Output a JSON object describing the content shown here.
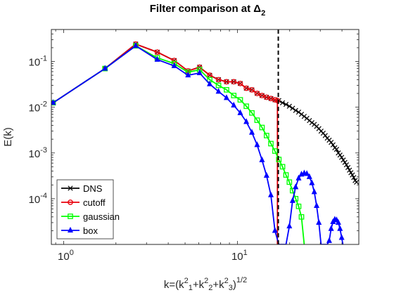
{
  "chart_data": {
    "type": "line",
    "title": "Filter comparison at Δ",
    "title_sub": "2",
    "xlabel": "k=(k",
    "xlabel_parts": [
      "k=(k",
      "1",
      "2",
      "+k",
      "2",
      "2",
      "+k",
      "3",
      "2",
      ")",
      "1/2"
    ],
    "ylabel": "E(k)",
    "xscale": "log",
    "yscale": "log",
    "xlim": [
      0.85,
      50
    ],
    "ylim": [
      1e-05,
      0.5
    ],
    "x_ticks": [
      {
        "value": 1,
        "base": "10",
        "exp": "0"
      },
      {
        "value": 10,
        "base": "10",
        "exp": "1"
      }
    ],
    "y_ticks": [
      {
        "value": 0.0001,
        "base": "10",
        "exp": "-4"
      },
      {
        "value": 0.001,
        "base": "10",
        "exp": "-3"
      },
      {
        "value": 0.01,
        "base": "10",
        "exp": "-2"
      },
      {
        "value": 0.1,
        "base": "10",
        "exp": "-1"
      }
    ],
    "cutoff_line_x": 17.2,
    "legend_location": "bottom-left",
    "series": [
      {
        "name": "DNS",
        "color": "#000000",
        "marker": "x",
        "x": [
          0.87,
          1.73,
          2.6,
          3.46,
          4.33,
          5.2,
          6.06,
          6.93,
          7.79,
          8.66,
          9.53,
          10.39,
          11.26,
          12.12,
          12.99,
          13.86,
          14.72,
          15.59,
          16.45,
          17.32,
          18.19,
          19.05,
          19.92,
          20.78,
          21.65,
          22.52,
          23.38,
          24.25,
          25.11,
          25.98,
          26.85,
          27.71,
          28.58,
          29.44,
          30.31,
          31.18,
          32.04,
          32.91,
          33.77,
          34.64,
          35.51,
          36.37,
          37.24,
          38.1,
          38.97,
          39.84,
          40.7,
          41.57,
          42.43,
          43.3,
          44.17,
          45.03,
          45.9,
          46.77,
          47.63,
          48.5
        ],
        "y": [
          0.0125,
          0.07,
          0.24,
          0.16,
          0.105,
          0.062,
          0.075,
          0.05,
          0.04,
          0.036,
          0.036,
          0.033,
          0.026,
          0.024,
          0.02,
          0.018,
          0.0165,
          0.0155,
          0.0145,
          0.014,
          0.0125,
          0.0115,
          0.0105,
          0.0095,
          0.0085,
          0.0078,
          0.007,
          0.0063,
          0.0057,
          0.0051,
          0.0046,
          0.0042,
          0.0038,
          0.0034,
          0.003,
          0.0027,
          0.0024,
          0.0021,
          0.0019,
          0.0017,
          0.0015,
          0.0013,
          0.0012,
          0.001,
          0.0009,
          0.0008,
          0.0007,
          0.00062,
          0.00055,
          0.00048,
          0.00042,
          0.00037,
          0.00033,
          0.00029,
          0.00025,
          0.00023
        ]
      },
      {
        "name": "cutoff",
        "color": "#e8000b",
        "marker": "o",
        "x": [
          0.87,
          1.73,
          2.6,
          3.46,
          4.33,
          5.2,
          6.06,
          6.93,
          7.79,
          8.66,
          9.53,
          10.39,
          11.26,
          12.12,
          12.99,
          13.86,
          14.72,
          15.59,
          16.45,
          17.0,
          17.0
        ],
        "y": [
          0.0125,
          0.07,
          0.24,
          0.16,
          0.105,
          0.062,
          0.075,
          0.05,
          0.04,
          0.036,
          0.036,
          0.033,
          0.026,
          0.024,
          0.02,
          0.018,
          0.0165,
          0.0155,
          0.0145,
          0.014,
          1e-05
        ]
      },
      {
        "name": "gaussian",
        "color": "#00ff00",
        "marker": "s",
        "x": [
          0.87,
          1.73,
          2.6,
          3.46,
          4.33,
          5.2,
          6.06,
          6.93,
          7.79,
          8.66,
          9.53,
          10.39,
          11.26,
          12.12,
          12.99,
          13.86,
          14.72,
          15.59,
          16.45,
          17.32,
          18.19,
          19.05,
          19.92,
          20.78,
          21.65,
          22.52,
          23.38,
          24.25
        ],
        "y": [
          0.0125,
          0.07,
          0.22,
          0.12,
          0.09,
          0.058,
          0.066,
          0.04,
          0.03,
          0.024,
          0.018,
          0.0145,
          0.0105,
          0.0075,
          0.0052,
          0.0036,
          0.0024,
          0.0016,
          0.0011,
          0.00072,
          0.0005,
          0.00033,
          0.00023,
          0.00015,
          0.0001,
          6.8e-05,
          4e-05,
          1e-05
        ]
      },
      {
        "name": "box",
        "color": "#0000ff",
        "marker": "^",
        "x": [
          0.87,
          1.73,
          2.6,
          3.46,
          4.33,
          5.2,
          6.06,
          6.93,
          7.79,
          8.66,
          9.53,
          10.39,
          11.26,
          12.12,
          12.99,
          13.86,
          14.72,
          15.59,
          16.45,
          17.32,
          18.19,
          19.05,
          19.92,
          20.78,
          21.65,
          22.52,
          23.38,
          24.25,
          25.11,
          25.98,
          26.85,
          27.71,
          28.58,
          29.44,
          30.31,
          31.18,
          32.04,
          32.91,
          33.77,
          34.64,
          35.51,
          36.37,
          37.24,
          38.1,
          38.97,
          39.84,
          40.7
        ],
        "y": [
          0.0125,
          0.07,
          0.22,
          0.11,
          0.08,
          0.05,
          0.056,
          0.032,
          0.022,
          0.016,
          0.011,
          0.0075,
          0.0048,
          0.0028,
          0.0015,
          0.0007,
          0.00032,
          0.00012,
          2e-05,
          1e-05,
          1e-05,
          1e-05,
          2.5e-05,
          9e-05,
          0.00018,
          0.00028,
          0.00034,
          0.00036,
          0.00035,
          0.0003,
          0.00022,
          0.00014,
          7e-05,
          3e-05,
          1e-05,
          1e-05,
          1e-05,
          1e-05,
          1.2e-05,
          2.2e-05,
          3.1e-05,
          3.5e-05,
          3.4e-05,
          3e-05,
          2.2e-05,
          1.4e-05,
          9e-06
        ]
      }
    ]
  }
}
